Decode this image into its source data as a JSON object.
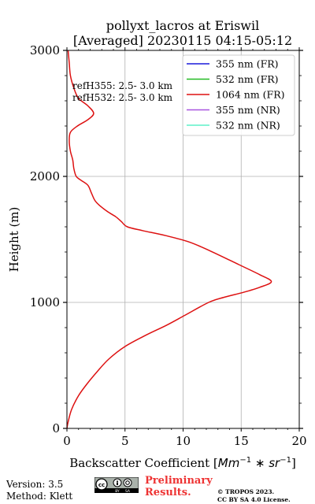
{
  "chart_data": {
    "type": "line",
    "title": [
      "pollyxt_lacros at Eriswil",
      "[Averaged] 20230115 04:15-05:12"
    ],
    "xlabel": "Backscatter Coefficient [Mm⁻¹ * sr⁻¹]",
    "xlabel_parts": {
      "text": "Backscatter Coefficient [",
      "mm": "Mm",
      "sup1": "−1",
      "star": " ∗ ",
      "sr": "sr",
      "sup2": "−1",
      "close": "]"
    },
    "ylabel": "Height (m)",
    "xlim": [
      0,
      20
    ],
    "ylim": [
      0,
      3000
    ],
    "xticks": [
      "0",
      "5",
      "10",
      "15",
      "20"
    ],
    "yticks": [
      "0",
      "1000",
      "2000",
      "3000"
    ],
    "grid": true,
    "legend_position": "top-right",
    "annotations": [
      "refH355:  2.5- 3.0 km",
      "refH532:  2.5- 3.0 km"
    ],
    "series": [
      {
        "name": "355 nm (FR)",
        "color": "#1a1adb",
        "points": []
      },
      {
        "name": "532 nm (FR)",
        "color": "#22bb22",
        "points": []
      },
      {
        "name": "1064 nm (FR)",
        "color": "#dd1111",
        "points": [
          {
            "x": 0.0,
            "y": 0
          },
          {
            "x": 0.1,
            "y": 50
          },
          {
            "x": 0.4,
            "y": 150
          },
          {
            "x": 1.0,
            "y": 260
          },
          {
            "x": 1.7,
            "y": 350
          },
          {
            "x": 2.6,
            "y": 450
          },
          {
            "x": 3.6,
            "y": 550
          },
          {
            "x": 5.0,
            "y": 650
          },
          {
            "x": 6.8,
            "y": 740
          },
          {
            "x": 8.6,
            "y": 820
          },
          {
            "x": 10.2,
            "y": 900
          },
          {
            "x": 12.2,
            "y": 1000
          },
          {
            "x": 13.5,
            "y": 1040
          },
          {
            "x": 15.2,
            "y": 1080
          },
          {
            "x": 16.6,
            "y": 1120
          },
          {
            "x": 17.6,
            "y": 1165
          },
          {
            "x": 16.6,
            "y": 1220
          },
          {
            "x": 14.8,
            "y": 1300
          },
          {
            "x": 12.3,
            "y": 1410
          },
          {
            "x": 10.5,
            "y": 1480
          },
          {
            "x": 8.5,
            "y": 1530
          },
          {
            "x": 6.5,
            "y": 1570
          },
          {
            "x": 5.2,
            "y": 1600
          },
          {
            "x": 4.7,
            "y": 1640
          },
          {
            "x": 4.2,
            "y": 1680
          },
          {
            "x": 3.5,
            "y": 1720
          },
          {
            "x": 2.8,
            "y": 1770
          },
          {
            "x": 2.4,
            "y": 1810
          },
          {
            "x": 2.1,
            "y": 1870
          },
          {
            "x": 1.8,
            "y": 1930
          },
          {
            "x": 1.2,
            "y": 1970
          },
          {
            "x": 0.8,
            "y": 2000
          },
          {
            "x": 0.6,
            "y": 2060
          },
          {
            "x": 0.5,
            "y": 2130
          },
          {
            "x": 0.3,
            "y": 2200
          },
          {
            "x": 0.2,
            "y": 2280
          },
          {
            "x": 0.3,
            "y": 2350
          },
          {
            "x": 0.9,
            "y": 2400
          },
          {
            "x": 1.8,
            "y": 2450
          },
          {
            "x": 2.3,
            "y": 2500
          },
          {
            "x": 1.8,
            "y": 2560
          },
          {
            "x": 1.0,
            "y": 2620
          },
          {
            "x": 0.6,
            "y": 2700
          },
          {
            "x": 0.3,
            "y": 2800
          },
          {
            "x": 0.2,
            "y": 2900
          },
          {
            "x": 0.1,
            "y": 3000
          }
        ]
      },
      {
        "name": "355 nm (NR)",
        "color": "#a855e0",
        "points": []
      },
      {
        "name": "532 nm (NR)",
        "color": "#5ef0c8",
        "points": []
      }
    ]
  },
  "footer": {
    "version": "Version: 3.5",
    "method": "Method: Klett",
    "preliminary_line1": "Preliminary",
    "preliminary_line2": "Results.",
    "copyright_line1": "© TROPOS 2023.",
    "copyright_line2": "CC BY SA 4.0 License.",
    "cc_badge_text": [
      "cc",
      "BY",
      "SA"
    ]
  }
}
